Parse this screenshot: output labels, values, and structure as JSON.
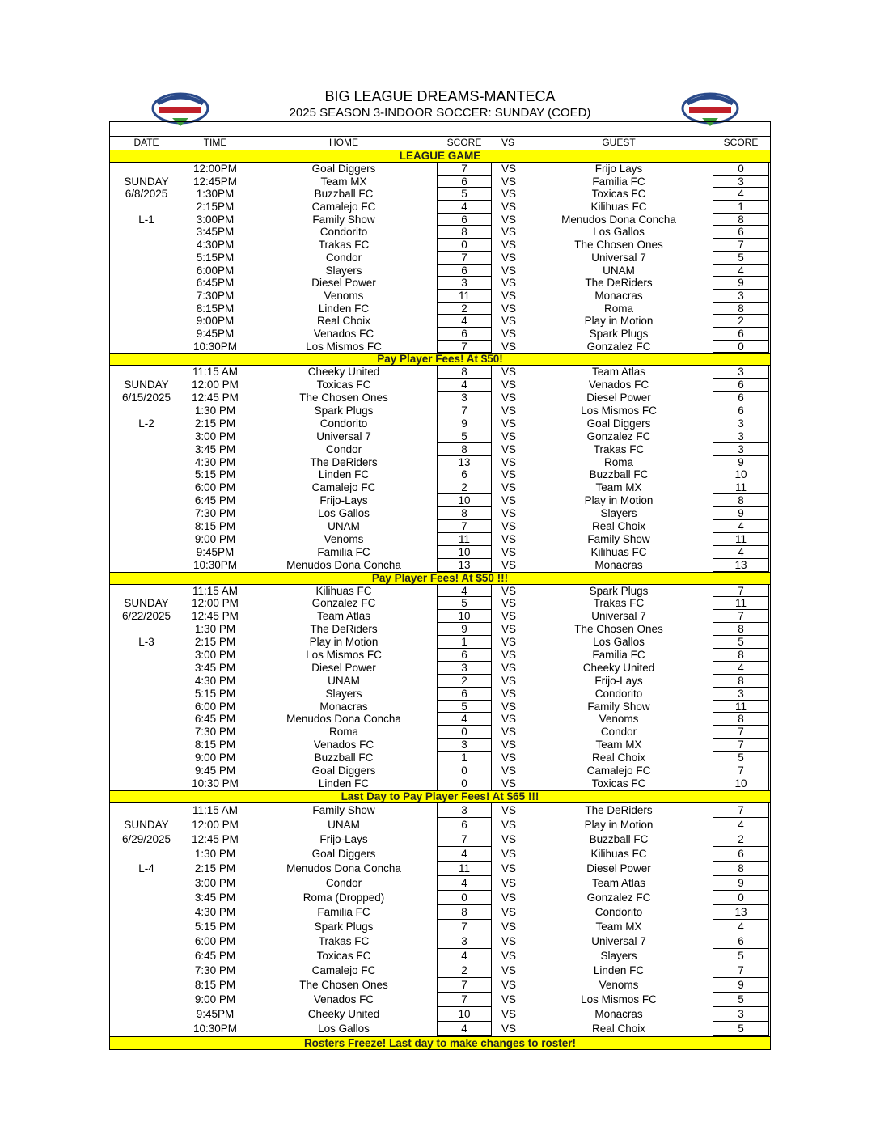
{
  "header": {
    "title": "BIG LEAGUE DREAMS-MANTECA",
    "subtitle": "2025 SEASON 3-INDOOR SOCCER: SUNDAY (COED)",
    "logo_text": "BIG LEAGUE DREAMS"
  },
  "columns": {
    "date": "DATE",
    "time": "TIME",
    "home": "HOME",
    "score": "SCORE",
    "vs": "VS",
    "guest": "GUEST",
    "score2": "SCORE"
  },
  "colors": {
    "banner": "#ffff00"
  },
  "sections": [
    {
      "banner": "LEAGUE GAME",
      "day": "SUNDAY",
      "date": "6/8/2025",
      "week": "L-1",
      "games": [
        [
          "12:00PM",
          "Goal Diggers",
          "7",
          "VS",
          "Frijo Lays",
          "0"
        ],
        [
          "12:45PM",
          "Team MX",
          "6",
          "VS",
          "Familia FC",
          "3"
        ],
        [
          "1:30PM",
          "Buzzball FC",
          "5",
          "VS",
          "Toxicas FC",
          "4"
        ],
        [
          "2:15PM",
          "Camalejo FC",
          "4",
          "VS",
          "Kilihuas FC",
          "1"
        ],
        [
          "3:00PM",
          "Family Show",
          "6",
          "VS",
          "Menudos Dona Concha",
          "8"
        ],
        [
          "3:45PM",
          "Condorito",
          "8",
          "VS",
          "Los Gallos",
          "6"
        ],
        [
          "4:30PM",
          "Trakas FC",
          "0",
          "VS",
          "The Chosen Ones",
          "7"
        ],
        [
          "5:15PM",
          "Condor",
          "7",
          "VS",
          "Universal 7",
          "5"
        ],
        [
          "6:00PM",
          "Slayers",
          "6",
          "VS",
          "UNAM",
          "4"
        ],
        [
          "6:45PM",
          "Diesel Power",
          "3",
          "VS",
          "The DeRiders",
          "9"
        ],
        [
          "7:30PM",
          "Venoms",
          "11",
          "VS",
          "Monacras",
          "3"
        ],
        [
          "8:15PM",
          "Linden FC",
          "2",
          "VS",
          "Roma",
          "8"
        ],
        [
          "9:00PM",
          "Real Choix",
          "4",
          "VS",
          "Play in Motion",
          "2"
        ],
        [
          "9:45PM",
          "Venados FC",
          "6",
          "VS",
          "Spark Plugs",
          "6"
        ],
        [
          "10:30PM",
          "Los Mismos FC",
          "7",
          "VS",
          "Gonzalez FC",
          "0"
        ]
      ]
    },
    {
      "banner": "Pay Player Fees! At $50!",
      "day": "SUNDAY",
      "date": "6/15/2025",
      "week": "L-2",
      "games": [
        [
          "11:15 AM",
          "Cheeky United",
          "8",
          "VS",
          "Team Atlas",
          "3"
        ],
        [
          "12:00 PM",
          "Toxicas FC",
          "4",
          "VS",
          "Venados FC",
          "6"
        ],
        [
          "12:45 PM",
          "The Chosen Ones",
          "3",
          "VS",
          "Diesel Power",
          "6"
        ],
        [
          "1:30 PM",
          "Spark Plugs",
          "7",
          "VS",
          "Los Mismos FC",
          "6"
        ],
        [
          "2:15 PM",
          "Condorito",
          "9",
          "VS",
          "Goal Diggers",
          "3"
        ],
        [
          "3:00 PM",
          "Universal 7",
          "5",
          "VS",
          "Gonzalez FC",
          "3"
        ],
        [
          "3:45 PM",
          "Condor",
          "8",
          "VS",
          "Trakas FC",
          "3"
        ],
        [
          "4:30 PM",
          "The DeRiders",
          "13",
          "VS",
          "Roma",
          "9"
        ],
        [
          "5:15 PM",
          "Linden FC",
          "6",
          "VS",
          "Buzzball FC",
          "10"
        ],
        [
          "6:00 PM",
          "Camalejo FC",
          "2",
          "VS",
          "Team MX",
          "11"
        ],
        [
          "6:45 PM",
          "Frijo-Lays",
          "10",
          "VS",
          "Play in Motion",
          "8"
        ],
        [
          "7:30 PM",
          "Los Gallos",
          "8",
          "VS",
          "Slayers",
          "9"
        ],
        [
          "8:15 PM",
          "UNAM",
          "7",
          "VS",
          "Real Choix",
          "4"
        ],
        [
          "9:00 PM",
          "Venoms",
          "11",
          "VS",
          "Family Show",
          "11"
        ],
        [
          "9:45PM",
          "Familia FC",
          "10",
          "VS",
          "Kilihuas FC",
          "4"
        ],
        [
          "10:30PM",
          "Menudos Dona Concha",
          "13",
          "VS",
          "Monacras",
          "13"
        ]
      ]
    },
    {
      "banner": "Pay Player Fees! At $50 !!!",
      "day": "SUNDAY",
      "date": "6/22/2025",
      "week": "L-3",
      "games": [
        [
          "11:15 AM",
          "Kilihuas FC",
          "4",
          "VS",
          "Spark Plugs",
          "7"
        ],
        [
          "12:00 PM",
          "Gonzalez FC",
          "5",
          "VS",
          "Trakas FC",
          "11"
        ],
        [
          "12:45 PM",
          "Team Atlas",
          "10",
          "VS",
          "Universal 7",
          "7"
        ],
        [
          "1:30 PM",
          "The DeRiders",
          "9",
          "VS",
          "The Chosen Ones",
          "8"
        ],
        [
          "2:15 PM",
          "Play in Motion",
          "1",
          "VS",
          "Los Gallos",
          "5"
        ],
        [
          "3:00 PM",
          "Los Mismos FC",
          "6",
          "VS",
          "Familia FC",
          "8"
        ],
        [
          "3:45 PM",
          "Diesel Power",
          "3",
          "VS",
          "Cheeky United",
          "4"
        ],
        [
          "4:30 PM",
          "UNAM",
          "2",
          "VS",
          "Frijo-Lays",
          "8"
        ],
        [
          "5:15 PM",
          "Slayers",
          "6",
          "VS",
          "Condorito",
          "3"
        ],
        [
          "6:00 PM",
          "Monacras",
          "5",
          "VS",
          "Family Show",
          "11"
        ],
        [
          "6:45 PM",
          "Menudos Dona Concha",
          "4",
          "VS",
          "Venoms",
          "8"
        ],
        [
          "7:30 PM",
          "Roma",
          "0",
          "VS",
          "Condor",
          "7"
        ],
        [
          "8:15 PM",
          "Venados FC",
          "3",
          "VS",
          "Team MX",
          "7"
        ],
        [
          "9:00 PM",
          "Buzzball FC",
          "1",
          "VS",
          "Real Choix",
          "5"
        ],
        [
          "9:45 PM",
          "Goal Diggers",
          "0",
          "VS",
          "Camalejo FC",
          "7"
        ],
        [
          "10:30 PM",
          "Linden FC",
          "0",
          "VS",
          "Toxicas FC",
          "10"
        ]
      ]
    },
    {
      "banner": "Last Day to Pay Player Fees! At $65 !!!",
      "day": "SUNDAY",
      "date": "6/29/2025",
      "week": "L-4",
      "games": [
        [
          "11:15 AM",
          "Family Show",
          "3",
          "VS",
          "The DeRiders",
          "7"
        ],
        [
          "12:00 PM",
          "UNAM",
          "6",
          "VS",
          "Play in Motion",
          "4"
        ],
        [
          "12:45 PM",
          "Frijo-Lays",
          "7",
          "VS",
          "Buzzball FC",
          "2"
        ],
        [
          "1:30 PM",
          "Goal Diggers",
          "4",
          "VS",
          "Kilihuas FC",
          "6"
        ],
        [
          "2:15 PM",
          "Menudos Dona Concha",
          "11",
          "VS",
          "Diesel Power",
          "8"
        ],
        [
          "3:00 PM",
          "Condor",
          "4",
          "VS",
          "Team Atlas",
          "9"
        ],
        [
          "3:45 PM",
          "Roma (Dropped)",
          "0",
          "VS",
          "Gonzalez FC",
          "0"
        ],
        [
          "4:30 PM",
          "Familia FC",
          "8",
          "VS",
          "Condorito",
          "13"
        ],
        [
          "5:15 PM",
          "Spark Plugs",
          "7",
          "VS",
          "Team MX",
          "4"
        ],
        [
          "6:00 PM",
          "Trakas FC",
          "3",
          "VS",
          "Universal 7",
          "6"
        ],
        [
          "6:45 PM",
          "Toxicas FC",
          "4",
          "VS",
          "Slayers",
          "5"
        ],
        [
          "7:30 PM",
          "Camalejo FC",
          "2",
          "VS",
          "Linden FC",
          "7"
        ],
        [
          "8:15 PM",
          "The Chosen Ones",
          "7",
          "VS",
          "Venoms",
          "9"
        ],
        [
          "9:00 PM",
          "Venados FC",
          "7",
          "VS",
          "Los Mismos FC",
          "5"
        ],
        [
          "9:45PM",
          "Cheeky United",
          "10",
          "VS",
          "Monacras",
          "3"
        ],
        [
          "10:30PM",
          "Los Gallos",
          "4",
          "VS",
          "Real Choix",
          "5"
        ]
      ]
    }
  ],
  "footer_banner": "Rosters Freeze! Last day to make changes to roster!"
}
